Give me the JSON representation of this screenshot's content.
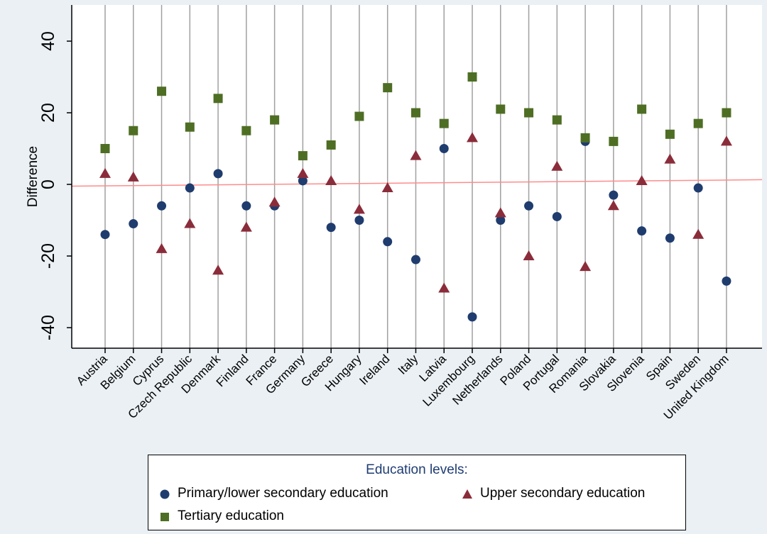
{
  "chart_data": {
    "type": "scatter",
    "ylabel": "Difference",
    "xlabel": "",
    "ylim": [
      -45,
      45
    ],
    "yticks": [
      -40,
      -20,
      0,
      20,
      40
    ],
    "grid": "vertical lines at each category",
    "reference_line": {
      "from": -0.5,
      "to": 1.3,
      "color": "#ff8c8c"
    },
    "categories": [
      "Austria",
      "Belgium",
      "Cyprus",
      "Czech Republic",
      "Denmark",
      "Finland",
      "France",
      "Germany",
      "Greece",
      "Hungary",
      "Ireland",
      "Italy",
      "Latvia",
      "Luxembourg",
      "Netherlands",
      "Poland",
      "Portugal",
      "Romania",
      "Slovakia",
      "Slovenia",
      "Spain",
      "Sweden",
      "United Kingdom"
    ],
    "series": [
      {
        "name": "Primary/lower secondary education",
        "marker": "circle",
        "color": "#1f3c6e",
        "values": [
          -14,
          -11,
          -6,
          -1,
          3,
          -6,
          -6,
          1,
          -12,
          -10,
          -16,
          -21,
          10,
          -37,
          -10,
          -6,
          -9,
          12,
          -3,
          -13,
          -15,
          -1,
          -27
        ]
      },
      {
        "name": "Upper secondary education",
        "marker": "triangle",
        "color": "#8b2c3a",
        "values": [
          3,
          2,
          -18,
          -11,
          -24,
          -12,
          -5,
          3,
          1,
          -7,
          -1,
          8,
          -29,
          13,
          -8,
          -20,
          5,
          -23,
          -6,
          1,
          7,
          -14,
          12
        ]
      },
      {
        "name": "Tertiary education",
        "marker": "square",
        "color": "#4e6e24",
        "values": [
          10,
          15,
          26,
          16,
          24,
          15,
          18,
          8,
          11,
          19,
          27,
          20,
          17,
          30,
          21,
          20,
          18,
          13,
          12,
          21,
          14,
          17,
          20
        ]
      }
    ]
  },
  "legend": {
    "title": "Education levels:",
    "items": [
      "Primary/lower secondary education",
      "Upper secondary education",
      "Tertiary education"
    ]
  }
}
